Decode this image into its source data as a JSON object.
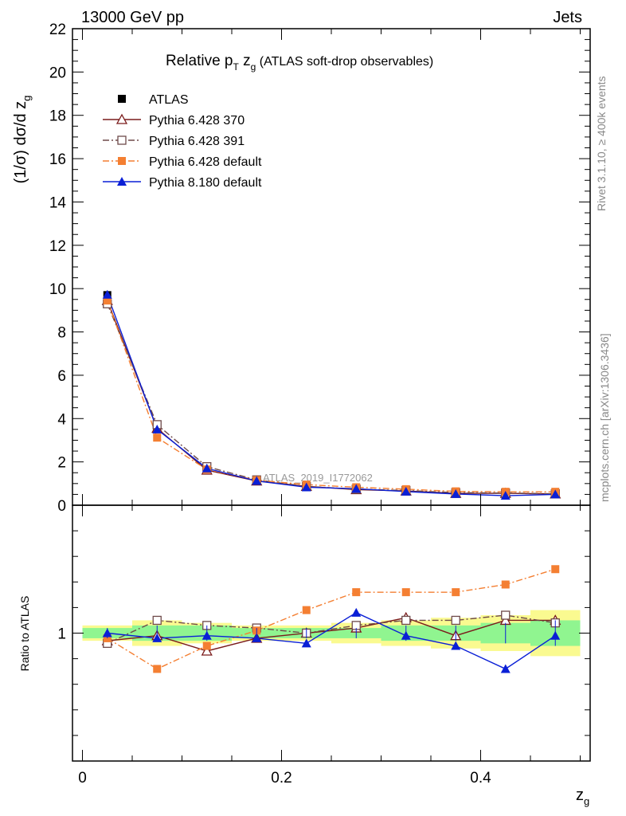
{
  "header": {
    "energy_label": "13000 GeV pp",
    "process_label": "Jets"
  },
  "side": {
    "rivet_label": "Rivet 3.1.10, ≥ 400k events",
    "mcplots_label": "mcplots.cern.ch [arXiv:1306.3436]"
  },
  "chart_data": {
    "type": "line",
    "title_parts": {
      "main": "Relative p",
      "sub_T": "T",
      "z": " z",
      "sub_g": "g",
      "suffix": " (ATLAS soft-drop observables)"
    },
    "ylabel_main": "(1/σ) dσ/d z",
    "ylabel_sub": "g",
    "ylabel_ratio": "Ratio to ATLAS",
    "xlabel": "z",
    "xlabel_sub": "g",
    "watermark": "ATLAS_2019_I1772062",
    "xlim": [
      -0.01,
      0.51
    ],
    "ylim_main": [
      0,
      22
    ],
    "ylim_ratio": [
      0.5,
      1.5
    ],
    "x_ticks": [
      "0",
      "0.2",
      "0.4"
    ],
    "y_ticks_main": [
      "0",
      "2",
      "4",
      "6",
      "8",
      "10",
      "12",
      "14",
      "16",
      "18",
      "20",
      "22"
    ],
    "y_ticks_ratio": [
      "1"
    ],
    "x": [
      0.025,
      0.075,
      0.125,
      0.175,
      0.225,
      0.275,
      0.325,
      0.375,
      0.425,
      0.475
    ],
    "bin_edges": [
      0.0,
      0.05,
      0.1,
      0.15,
      0.2,
      0.25,
      0.3,
      0.35,
      0.4,
      0.45,
      0.5
    ],
    "band_stat": [
      0.02,
      0.03,
      0.03,
      0.02,
      0.02,
      0.02,
      0.03,
      0.03,
      0.04,
      0.05
    ],
    "band_total": [
      0.03,
      0.05,
      0.04,
      0.03,
      0.03,
      0.04,
      0.05,
      0.06,
      0.07,
      0.09
    ],
    "legend": [
      {
        "label": "ATLAS",
        "color": "#000000",
        "marker": "square-filled",
        "dash": "none"
      },
      {
        "label": "Pythia 6.428 370",
        "color": "#7a1b1b",
        "marker": "triangle-open",
        "dash": "solid"
      },
      {
        "label": "Pythia 6.428 391",
        "color": "#6e4a4a",
        "marker": "square-open",
        "dash": "dashdot"
      },
      {
        "label": "Pythia 6.428 default",
        "color": "#f47f32",
        "marker": "square-filled",
        "dash": "dashdot"
      },
      {
        "label": "Pythia 8.180 default",
        "color": "#0a1fd6",
        "marker": "triangle-filled",
        "dash": "solid"
      }
    ],
    "series": [
      {
        "name": "ATLAS",
        "values": [
          9.7,
          3.55,
          1.75,
          1.15,
          0.87,
          0.72,
          0.64,
          0.55,
          0.52,
          0.5
        ]
      },
      {
        "name": "Pythia 6.428 370",
        "values": [
          9.45,
          3.55,
          1.62,
          1.12,
          0.87,
          0.72,
          0.66,
          0.55,
          0.55,
          0.52
        ],
        "ratio": [
          0.97,
          0.99,
          0.93,
          0.98,
          1.0,
          1.02,
          1.06,
          0.99,
          1.05,
          1.05
        ]
      },
      {
        "name": "Pythia 6.428 391",
        "values": [
          9.3,
          3.72,
          1.78,
          1.17,
          0.87,
          0.74,
          0.68,
          0.58,
          0.56,
          0.53
        ],
        "ratio": [
          0.96,
          1.05,
          1.03,
          1.02,
          1.0,
          1.03,
          1.05,
          1.05,
          1.07,
          1.04
        ]
      },
      {
        "name": "Pythia 6.428 default",
        "values": [
          9.45,
          3.12,
          1.65,
          1.16,
          0.95,
          0.83,
          0.74,
          0.64,
          0.62,
          0.62
        ],
        "ratio": [
          0.98,
          0.86,
          0.95,
          1.01,
          1.09,
          1.16,
          1.16,
          1.16,
          1.19,
          1.25
        ]
      },
      {
        "name": "Pythia 8.180 default",
        "values": [
          9.72,
          3.5,
          1.7,
          1.12,
          0.83,
          0.76,
          0.63,
          0.52,
          0.44,
          0.5
        ],
        "ratio": [
          1.0,
          0.98,
          0.99,
          0.98,
          0.96,
          1.08,
          0.99,
          0.95,
          0.86,
          0.99
        ]
      }
    ]
  }
}
